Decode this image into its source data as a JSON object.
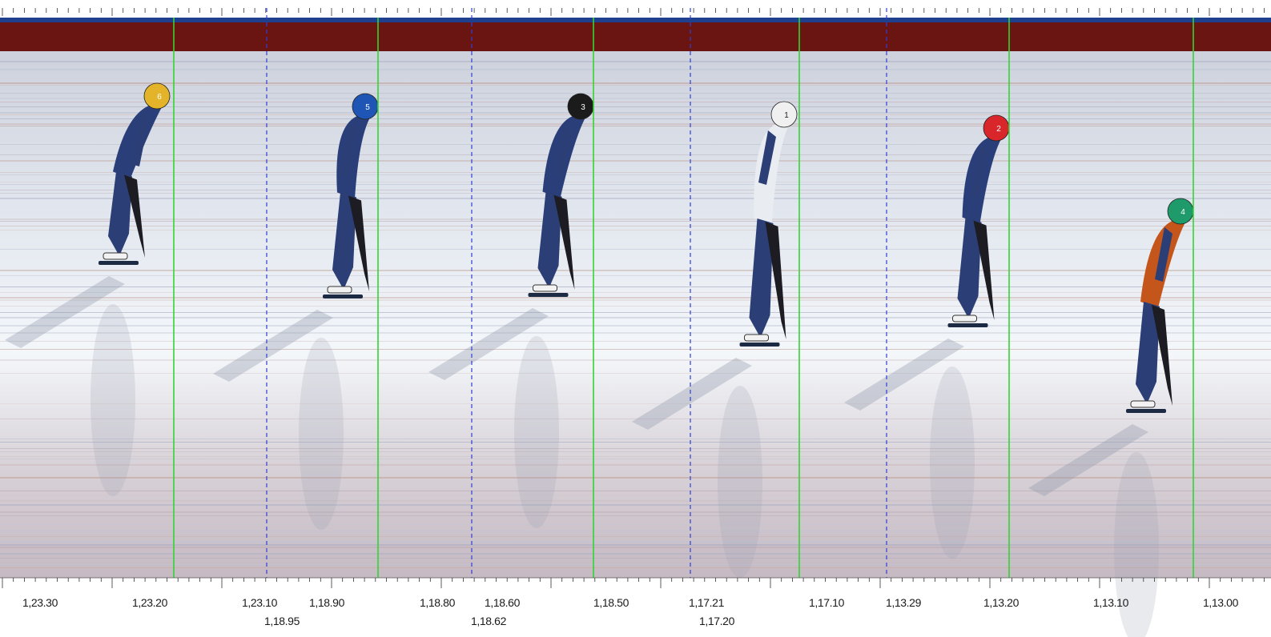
{
  "photo_finish": {
    "segments": [
      {
        "labels": [
          "1,23.30",
          "1,23.20",
          "1,23.10"
        ],
        "skater": {
          "number": "6",
          "helmet_color": "#e3b42a"
        }
      },
      {
        "labels": [
          "1,18.95",
          "1,18.90",
          "1,18.80",
          "1,18.62"
        ],
        "skater": {
          "number": "5",
          "helmet_color": "#1f55b5"
        }
      },
      {
        "labels": [
          "1,18.60",
          "1,18.50"
        ],
        "skater": {
          "number": "3",
          "helmet_color": "#1b1b1b"
        }
      },
      {
        "labels": [
          "1,17.21",
          "1,17.20",
          "1,17.10"
        ],
        "skater": {
          "number": "1",
          "helmet_color": "#f0f0f0"
        }
      },
      {
        "labels": [
          "1,13.29",
          "1,13.20"
        ],
        "skater": {
          "number": "2",
          "helmet_color": "#d9262a"
        }
      },
      {
        "labels": [
          "1,13.10",
          "1,13.00"
        ],
        "skater": {
          "number": "4",
          "helmet_color": "#1f9a6b"
        }
      }
    ],
    "colors": {
      "finish_line": "#33d433",
      "segment_divider": "#2f3fd6",
      "top_band_red": "#6b1512",
      "top_band_blue": "#1f3f8f",
      "ice": "#e9edf3"
    }
  }
}
